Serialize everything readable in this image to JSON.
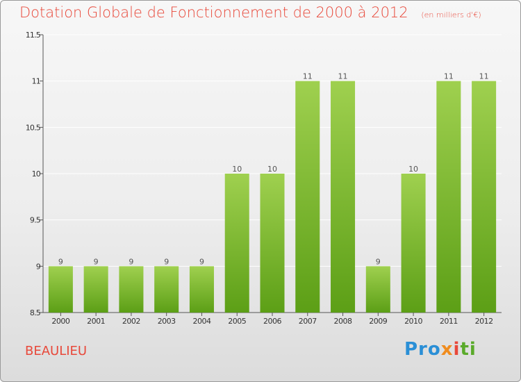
{
  "chart_data": {
    "type": "bar",
    "title": "Dotation Globale de Fonctionnement de 2000 à 2012",
    "subtitle": "(en milliers d'€)",
    "xlabel": "",
    "ylabel": "",
    "categories": [
      "2000",
      "2001",
      "2002",
      "2003",
      "2004",
      "2005",
      "2006",
      "2007",
      "2008",
      "2009",
      "2010",
      "2011",
      "2012"
    ],
    "values": [
      9,
      9,
      9,
      9,
      9,
      10,
      10,
      11,
      11,
      9,
      10,
      11,
      11
    ],
    "data_labels": [
      "9",
      "9",
      "9",
      "9",
      "9",
      "10",
      "10",
      "11",
      "11",
      "9",
      "10",
      "11",
      "11"
    ],
    "ylim": [
      8.5,
      11.5
    ],
    "yticks": [
      8.5,
      9,
      9.5,
      10,
      10.5,
      11,
      11.5
    ],
    "ytick_labels": [
      "8.5",
      "9",
      "9.5",
      "10",
      "10.5",
      "11",
      "11.5"
    ],
    "grid": true,
    "legend": "none",
    "colors": {
      "bar_top": "#9fd04f",
      "bar_bottom": "#5c9f16",
      "title": "#e8483a",
      "grid": "#ffffff"
    }
  },
  "footer": {
    "commune": "BEAULIEU",
    "brand_parts": [
      "Pro",
      "x",
      "i",
      "ti"
    ]
  }
}
